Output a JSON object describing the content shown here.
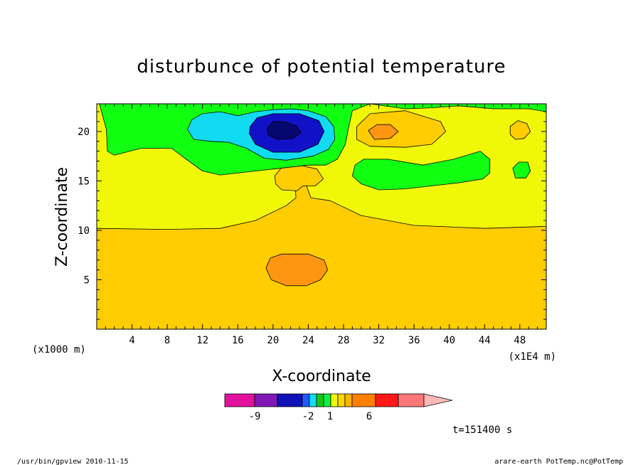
{
  "chart_data": {
    "type": "contour",
    "title": "disturbunce of potential temperature",
    "xlabel": "X-coordinate",
    "ylabel": "Z-coordinate",
    "x_unit_left": "(x1000 m)",
    "x_unit_right": "(x1E4 m)",
    "xticks": [
      4,
      8,
      12,
      16,
      20,
      24,
      28,
      32,
      36,
      40,
      44,
      48
    ],
    "yticks": [
      5,
      10,
      15,
      20
    ],
    "xlim": [
      0,
      51
    ],
    "ylim": [
      0,
      22.8
    ],
    "grid": false,
    "colorbar": {
      "colors": [
        "#e2119c",
        "#7f18b5",
        "#1111b8",
        "#1e5bff",
        "#10dff0",
        "#11c811",
        "#10f040",
        "#f0f808",
        "#ffd700",
        "#ffb400",
        "#ff8000",
        "#ff1818",
        "#ff7878",
        "#ffb8b8"
      ],
      "labels": [
        "-9",
        "-2",
        "1",
        "6"
      ]
    },
    "regions": [
      {
        "level": "1",
        "color": "#ffcd00",
        "path": [
          [
            0,
            0
          ],
          [
            51,
            0
          ],
          [
            51,
            10.4
          ],
          [
            44,
            10.2
          ],
          [
            36,
            10.5
          ],
          [
            30,
            11.5
          ],
          [
            26.5,
            13
          ],
          [
            24.3,
            13.3
          ],
          [
            23.8,
            14.5
          ],
          [
            23.3,
            14.7
          ],
          [
            22.5,
            14.7
          ],
          [
            22.6,
            13.3
          ],
          [
            21.5,
            12.5
          ],
          [
            18,
            11
          ],
          [
            14,
            10.2
          ],
          [
            8,
            10.1
          ],
          [
            0,
            10.2
          ]
        ]
      },
      {
        "level": "1",
        "color": "#ffcd00",
        "path": [
          [
            20.2,
            15.5
          ],
          [
            21,
            16.4
          ],
          [
            23,
            16.6
          ],
          [
            25,
            16.2
          ],
          [
            25.7,
            15.2
          ],
          [
            24.8,
            14.5
          ],
          [
            23.4,
            14.5
          ],
          [
            22.7,
            14
          ],
          [
            21,
            14.1
          ],
          [
            20.3,
            14.7
          ]
        ]
      },
      {
        "level": "1",
        "color": "#ffcd00",
        "path": [
          [
            29.5,
            20.5
          ],
          [
            31,
            21.8
          ],
          [
            35,
            22.1
          ],
          [
            39,
            21
          ],
          [
            39.6,
            20
          ],
          [
            38,
            18.7
          ],
          [
            35,
            18.4
          ],
          [
            31,
            18.5
          ],
          [
            29.5,
            19.2
          ]
        ]
      },
      {
        "level": "1",
        "color": "#ffcd00",
        "path": [
          [
            46.9,
            20.5
          ],
          [
            47.8,
            21.1
          ],
          [
            48.8,
            20.8
          ],
          [
            49.2,
            20
          ],
          [
            48.5,
            19.3
          ],
          [
            47.5,
            19.2
          ],
          [
            46.9,
            19.7
          ]
        ]
      },
      {
        "level": "2",
        "color": "#ff9611",
        "path": [
          [
            19.2,
            6.2
          ],
          [
            19.7,
            7.2
          ],
          [
            21,
            7.6
          ],
          [
            24,
            7.6
          ],
          [
            25.8,
            7
          ],
          [
            26.2,
            6
          ],
          [
            25.4,
            5
          ],
          [
            23.8,
            4.4
          ],
          [
            21.5,
            4.4
          ],
          [
            19.8,
            5
          ]
        ]
      },
      {
        "level": "2",
        "color": "#ff9611",
        "path": [
          [
            30.8,
            20.1
          ],
          [
            31.8,
            20.7
          ],
          [
            33.3,
            20.7
          ],
          [
            34.2,
            20
          ],
          [
            33.3,
            19.3
          ],
          [
            31.5,
            19.2
          ]
        ]
      },
      {
        "level": "-1",
        "color": "#11ff11",
        "path": [
          [
            0,
            22.8
          ],
          [
            51,
            22.8
          ],
          [
            51,
            22
          ],
          [
            49,
            22.3
          ],
          [
            45,
            22.3
          ],
          [
            41,
            22.6
          ],
          [
            38,
            22.4
          ],
          [
            35,
            22.3
          ],
          [
            31,
            22.8
          ],
          [
            29,
            22.1
          ],
          [
            28.6,
            20.5
          ],
          [
            28.2,
            18.7
          ],
          [
            27.3,
            17.2
          ],
          [
            26,
            16.6
          ],
          [
            24,
            16.6
          ],
          [
            20,
            16.2
          ],
          [
            17,
            15.9
          ],
          [
            14,
            15.6
          ],
          [
            12,
            16
          ],
          [
            10,
            17.3
          ],
          [
            8.5,
            18.3
          ],
          [
            5,
            18.3
          ],
          [
            2,
            17.6
          ],
          [
            1.2,
            18
          ],
          [
            1.1,
            20.2
          ],
          [
            0.3,
            22.8
          ]
        ]
      },
      {
        "level": "-1",
        "color": "#11ff11",
        "path": [
          [
            29.3,
            16.6
          ],
          [
            30.3,
            17.2
          ],
          [
            33,
            17.2
          ],
          [
            37,
            16.6
          ],
          [
            40.5,
            17.2
          ],
          [
            43.5,
            18
          ],
          [
            44.6,
            17.2
          ],
          [
            44.6,
            15.8
          ],
          [
            43.8,
            15.2
          ],
          [
            41,
            14.8
          ],
          [
            35,
            14.2
          ],
          [
            32,
            14.1
          ],
          [
            30,
            14.7
          ],
          [
            29,
            15.5
          ]
        ]
      },
      {
        "level": "-1",
        "color": "#11ff11",
        "path": [
          [
            47.2,
            16.3
          ],
          [
            47.9,
            16.9
          ],
          [
            48.9,
            16.9
          ],
          [
            49.2,
            16
          ],
          [
            48.7,
            15.3
          ],
          [
            47.5,
            15.3
          ]
        ]
      },
      {
        "level": "-2",
        "color": "#11dbf0",
        "path": [
          [
            10.3,
            20.2
          ],
          [
            10.8,
            21.2
          ],
          [
            12,
            21.8
          ],
          [
            14,
            22
          ],
          [
            16,
            21.6
          ],
          [
            18,
            22
          ],
          [
            20,
            22.2
          ],
          [
            22,
            22.3
          ],
          [
            24,
            22.1
          ],
          [
            26,
            21.5
          ],
          [
            26.9,
            20.5
          ],
          [
            27,
            19.2
          ],
          [
            26.3,
            18.2
          ],
          [
            24.5,
            17.5
          ],
          [
            21.5,
            17.1
          ],
          [
            19,
            17.3
          ],
          [
            17,
            18.3
          ],
          [
            15,
            18.9
          ],
          [
            13,
            19
          ],
          [
            11,
            19.2
          ]
        ]
      },
      {
        "level": "-3",
        "color": "#1111c8",
        "path": [
          [
            17.4,
            20.5
          ],
          [
            18.2,
            21.4
          ],
          [
            20,
            21.8
          ],
          [
            23,
            21.8
          ],
          [
            25.2,
            21.1
          ],
          [
            25.8,
            20
          ],
          [
            25.1,
            18.7
          ],
          [
            23,
            17.9
          ],
          [
            20,
            17.9
          ],
          [
            18,
            18.7
          ],
          [
            17.3,
            19.8
          ]
        ]
      },
      {
        "level": "-4",
        "color": "#070770",
        "path": [
          [
            19.3,
            20.3
          ],
          [
            20,
            21
          ],
          [
            21.2,
            21
          ],
          [
            22.6,
            20.6
          ],
          [
            23.2,
            19.9
          ],
          [
            22.3,
            19.3
          ],
          [
            20.5,
            19.2
          ],
          [
            19.5,
            19.6
          ]
        ]
      }
    ]
  },
  "footer": {
    "time_label": "t=151400 s",
    "left": "/usr/bin/gpview   2010-11-15",
    "right": "arare-earth_PotTemp.nc@PotTemp"
  }
}
